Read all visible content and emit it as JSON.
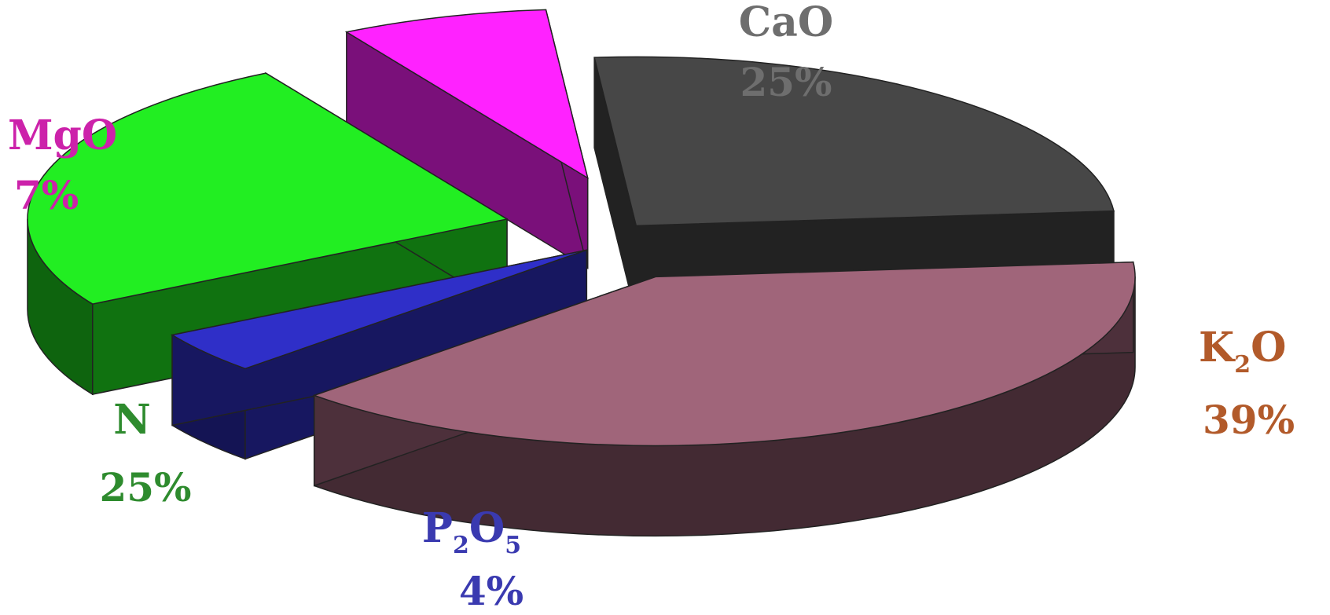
{
  "chart_data": {
    "type": "pie",
    "style": "3d-exploded",
    "slices": [
      {
        "label": "CaO",
        "value": 25,
        "display": "25%",
        "color": "#474747",
        "label_color": "#6e6e6e",
        "sub": null
      },
      {
        "label": "K2O",
        "value": 39,
        "display": "39%",
        "color": "#a0657a",
        "label_color": "#b25a2a",
        "sub": {
          "base": "K",
          "index": "2",
          "tail": "O"
        }
      },
      {
        "label": "P2O5",
        "value": 4,
        "display": "4%",
        "color": "#2f2fc8",
        "label_color": "#3a3ab0",
        "sub": {
          "base": "P",
          "index": "2",
          "tail": "O",
          "index2": "5"
        }
      },
      {
        "label": "N",
        "value": 25,
        "display": "25%",
        "color": "#22ee22",
        "label_color": "#2e8b2e",
        "sub": null
      },
      {
        "label": "MgO",
        "value": 7,
        "display": "7%",
        "color": "#ff22ff",
        "label_color": "#cc22aa",
        "sub": null
      }
    ]
  }
}
